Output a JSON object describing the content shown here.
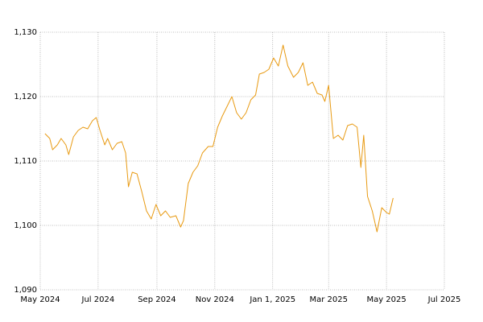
{
  "chart_data": {
    "type": "line",
    "color": "#e89a12",
    "grid": true,
    "x": [
      "2024-05-06",
      "2024-05-11",
      "2024-05-14",
      "2024-05-19",
      "2024-05-23",
      "2024-05-28",
      "2024-05-31",
      "2024-06-05",
      "2024-06-10",
      "2024-06-15",
      "2024-06-20",
      "2024-06-25",
      "2024-06-29",
      "2024-07-03",
      "2024-07-08",
      "2024-07-11",
      "2024-07-16",
      "2024-07-21",
      "2024-07-26",
      "2024-07-30",
      "2024-08-02",
      "2024-08-06",
      "2024-08-11",
      "2024-08-16",
      "2024-08-21",
      "2024-08-26",
      "2024-08-31",
      "2024-09-05",
      "2024-09-10",
      "2024-09-15",
      "2024-09-21",
      "2024-09-26",
      "2024-09-29",
      "2024-10-04",
      "2024-10-09",
      "2024-10-14",
      "2024-10-19",
      "2024-10-25",
      "2024-10-30",
      "2024-11-04",
      "2024-11-09",
      "2024-11-14",
      "2024-11-19",
      "2024-11-24",
      "2024-11-29",
      "2024-12-04",
      "2024-12-09",
      "2024-12-14",
      "2024-12-18",
      "2024-12-23",
      "2024-12-28",
      "2025-01-02",
      "2025-01-07",
      "2025-01-12",
      "2025-01-17",
      "2025-01-23",
      "2025-01-28",
      "2025-02-02",
      "2025-02-07",
      "2025-02-12",
      "2025-02-17",
      "2025-02-22",
      "2025-02-25",
      "2025-03-01",
      "2025-03-06",
      "2025-03-11",
      "2025-03-16",
      "2025-03-21",
      "2025-03-26",
      "2025-03-31",
      "2025-04-04",
      "2025-04-07",
      "2025-04-11",
      "2025-04-16",
      "2025-04-21",
      "2025-04-26",
      "2025-05-01",
      "2025-05-04",
      "2025-05-08"
    ],
    "values": [
      1114.25,
      1113.5,
      1111.75,
      1112.5,
      1113.5,
      1112.5,
      1111,
      1113.75,
      1114.75,
      1115.25,
      1115,
      1116.25,
      1116.75,
      1114.75,
      1112.5,
      1113.5,
      1111.75,
      1112.75,
      1113,
      1111.25,
      1106,
      1108.25,
      1108,
      1105.25,
      1102.25,
      1101,
      1103.25,
      1101.5,
      1102.25,
      1101.25,
      1101.5,
      1099.75,
      1100.75,
      1106.5,
      1108.25,
      1109.25,
      1111.25,
      1112.25,
      1112.25,
      1115.25,
      1117,
      1118.5,
      1120,
      1117.5,
      1116.5,
      1117.5,
      1119.5,
      1120.25,
      1123.5,
      1123.75,
      1124.25,
      1126,
      1124.75,
      1128,
      1124.75,
      1123,
      1123.75,
      1125.25,
      1121.75,
      1122.25,
      1120.5,
      1120.25,
      1119.25,
      1121.75,
      1113.5,
      1114,
      1113.25,
      1115.5,
      1115.75,
      1115.25,
      1109,
      1114,
      1104.5,
      1102.25,
      1099,
      1102.75,
      1102,
      1101.75,
      1104.25
    ],
    "xlim": [
      "2024-05-01",
      "2025-07-01"
    ],
    "xticks": [
      {
        "value": "2024-05-01",
        "label": "May 2024"
      },
      {
        "value": "2024-07-01",
        "label": "Jul 2024"
      },
      {
        "value": "2024-09-01",
        "label": "Sep 2024"
      },
      {
        "value": "2024-11-01",
        "label": "Nov 2024"
      },
      {
        "value": "2025-01-01",
        "label": "Jan 1, 2025"
      },
      {
        "value": "2025-03-01",
        "label": "Mar 2025"
      },
      {
        "value": "2025-05-01",
        "label": "May 2025"
      },
      {
        "value": "2025-07-01",
        "label": "Jul 2025"
      }
    ],
    "ylim": [
      1090,
      1130
    ],
    "yticks": [
      {
        "value": 1090,
        "label": "1,090"
      },
      {
        "value": 1100,
        "label": "1,100"
      },
      {
        "value": 1110,
        "label": "1,110"
      },
      {
        "value": 1120,
        "label": "1,120"
      },
      {
        "value": 1130,
        "label": "1,130"
      }
    ]
  }
}
